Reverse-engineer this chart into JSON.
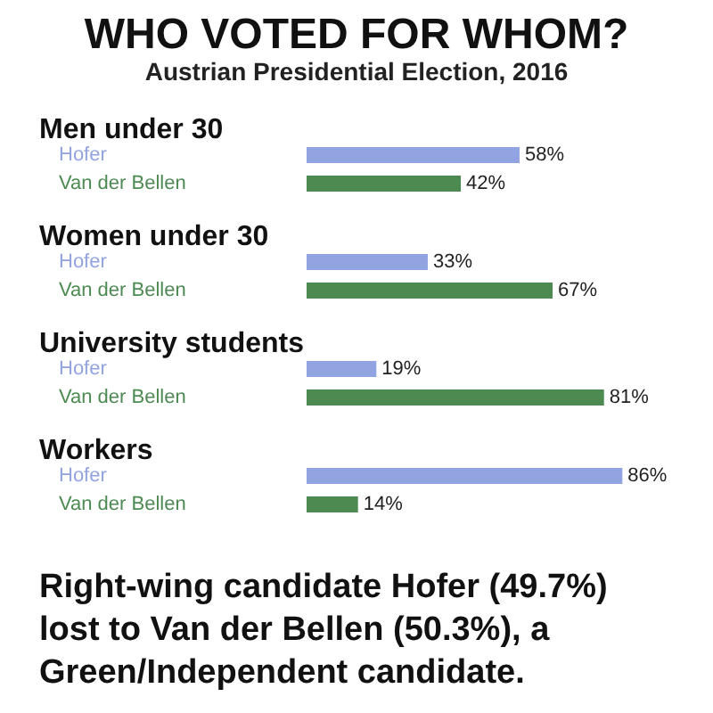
{
  "chart_data": {
    "type": "bar",
    "orientation": "horizontal",
    "title": "WHO VOTED FOR WHOM?",
    "subtitle": "Austrian Presidential Election, 2016",
    "categories": [
      "Men under 30",
      "Women under 30",
      "University students",
      "Workers"
    ],
    "series": [
      {
        "name": "Hofer",
        "color": "#91a3e0",
        "values": [
          58,
          33,
          19,
          86
        ],
        "value_labels": [
          "58%",
          "33%",
          "19%",
          "86%"
        ]
      },
      {
        "name": "Van der Bellen",
        "color": "#4c8a52",
        "values": [
          42,
          67,
          81,
          14
        ],
        "value_labels": [
          "42%",
          "67%",
          "81%",
          "14%"
        ]
      }
    ],
    "annotations": [
      "Right-wing candidate Hofer (49.7%) lost to Van der Bellen (50.3%), a Green/Independent candidate."
    ]
  }
}
